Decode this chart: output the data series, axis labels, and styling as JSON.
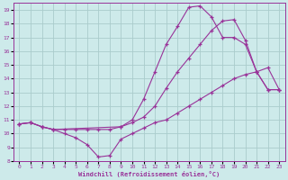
{
  "xlabel": "Windchill (Refroidissement éolien,°C)",
  "xlim": [
    -0.5,
    23.5
  ],
  "ylim": [
    8,
    19.5
  ],
  "xticks": [
    0,
    1,
    2,
    3,
    4,
    5,
    6,
    7,
    8,
    9,
    10,
    11,
    12,
    13,
    14,
    15,
    16,
    17,
    18,
    19,
    20,
    21,
    22,
    23
  ],
  "yticks": [
    8,
    9,
    10,
    11,
    12,
    13,
    14,
    15,
    16,
    17,
    18,
    19
  ],
  "bg_color": "#cdeaea",
  "grid_color": "#aacccc",
  "line_color": "#993399",
  "line1_x": [
    0,
    1,
    2,
    3,
    4,
    5,
    6,
    7,
    8,
    9,
    10,
    11,
    12,
    13,
    14,
    15,
    16,
    17,
    18,
    19,
    20,
    21,
    22,
    23
  ],
  "line1_y": [
    10.7,
    10.8,
    10.5,
    10.3,
    10.0,
    9.7,
    9.2,
    8.3,
    8.4,
    9.6,
    10.0,
    10.4,
    10.8,
    11.0,
    11.5,
    12.0,
    12.5,
    13.0,
    13.5,
    14.0,
    14.3,
    14.5,
    14.8,
    13.2
  ],
  "line2_x": [
    0,
    1,
    2,
    3,
    4,
    5,
    6,
    7,
    8,
    9,
    10,
    11,
    12,
    13,
    14,
    15,
    16,
    17,
    18,
    19,
    20,
    21,
    22,
    23
  ],
  "line2_y": [
    10.7,
    10.8,
    10.5,
    10.3,
    10.3,
    10.3,
    10.3,
    10.3,
    10.3,
    10.5,
    10.8,
    11.2,
    12.0,
    13.3,
    14.5,
    15.5,
    16.5,
    17.5,
    18.2,
    18.3,
    16.8,
    14.5,
    13.2,
    13.2
  ],
  "line3_x": [
    0,
    1,
    2,
    3,
    9,
    10,
    11,
    12,
    13,
    14,
    15,
    16,
    17,
    18,
    19,
    20,
    21,
    22,
    23
  ],
  "line3_y": [
    10.7,
    10.8,
    10.5,
    10.3,
    10.5,
    11.0,
    12.5,
    14.5,
    16.5,
    17.8,
    19.2,
    19.3,
    18.5,
    17.0,
    17.0,
    16.5,
    14.5,
    13.2,
    13.2
  ]
}
